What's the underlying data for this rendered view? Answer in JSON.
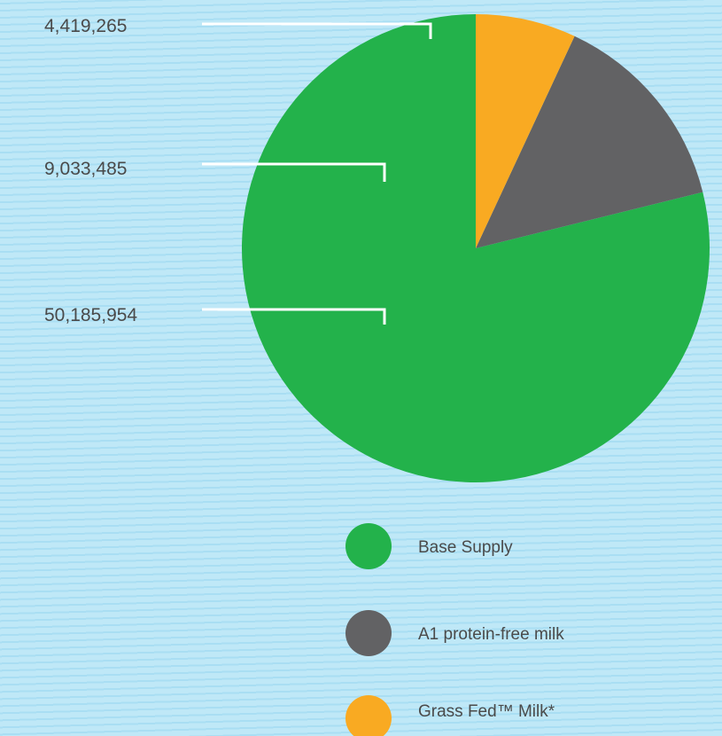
{
  "chart_data": {
    "type": "pie",
    "slices": [
      {
        "label": "Base Supply",
        "value": 50185954,
        "value_label": "50,185,954",
        "color": "#23b24b"
      },
      {
        "label": "A1 protein-free milk",
        "value": 9033485,
        "value_label": "9,033,485",
        "color": "#626264"
      },
      {
        "label": "Grass Fed™ Milk*",
        "value": 4419265,
        "value_label": "4,419,265",
        "color": "#f9aa22"
      }
    ],
    "start": "top",
    "direction": "counterclockwise",
    "legend_position": "bottom",
    "leader_line_color": "#ffffff"
  }
}
